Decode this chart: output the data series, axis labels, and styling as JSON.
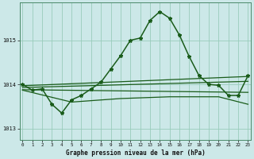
{
  "title": "Graphe pression niveau de la mer (hPa)",
  "bg_color": "#cce8e8",
  "grid_color": "#99ccbb",
  "line_color": "#1a5c1a",
  "x_ticks": [
    0,
    1,
    2,
    3,
    4,
    5,
    6,
    7,
    8,
    9,
    10,
    11,
    12,
    13,
    14,
    15,
    16,
    17,
    18,
    19,
    20,
    21,
    22,
    23
  ],
  "y_ticks": [
    1013,
    1014,
    1015
  ],
  "ylim": [
    1012.75,
    1015.85
  ],
  "xlim": [
    -0.3,
    23.3
  ],
  "series": [
    {
      "x": [
        0,
        1,
        2,
        3,
        4,
        5,
        6,
        7,
        8,
        9,
        10,
        11,
        12,
        13,
        14,
        15,
        16,
        17,
        18,
        19,
        20,
        21,
        22,
        23
      ],
      "y": [
        1014.0,
        1013.87,
        1013.9,
        1013.55,
        1013.35,
        1013.65,
        1013.75,
        1013.9,
        1014.05,
        1014.35,
        1014.65,
        1015.0,
        1015.05,
        1015.45,
        1015.65,
        1015.5,
        1015.12,
        1014.63,
        1014.2,
        1014.0,
        1013.98,
        1013.75,
        1013.75,
        1014.2
      ],
      "marker": true,
      "linewidth": 1.1
    },
    {
      "x": [
        0,
        23
      ],
      "y": [
        1013.97,
        1014.18
      ],
      "marker": false,
      "linewidth": 0.9
    },
    {
      "x": [
        0,
        23
      ],
      "y": [
        1013.93,
        1014.07
      ],
      "marker": false,
      "linewidth": 0.9
    },
    {
      "x": [
        0,
        23
      ],
      "y": [
        1013.88,
        1013.82
      ],
      "marker": false,
      "linewidth": 0.9
    },
    {
      "x": [
        0,
        5,
        10,
        15,
        20,
        23
      ],
      "y": [
        1013.87,
        1013.6,
        1013.68,
        1013.72,
        1013.72,
        1013.55
      ],
      "marker": false,
      "linewidth": 0.9
    }
  ]
}
